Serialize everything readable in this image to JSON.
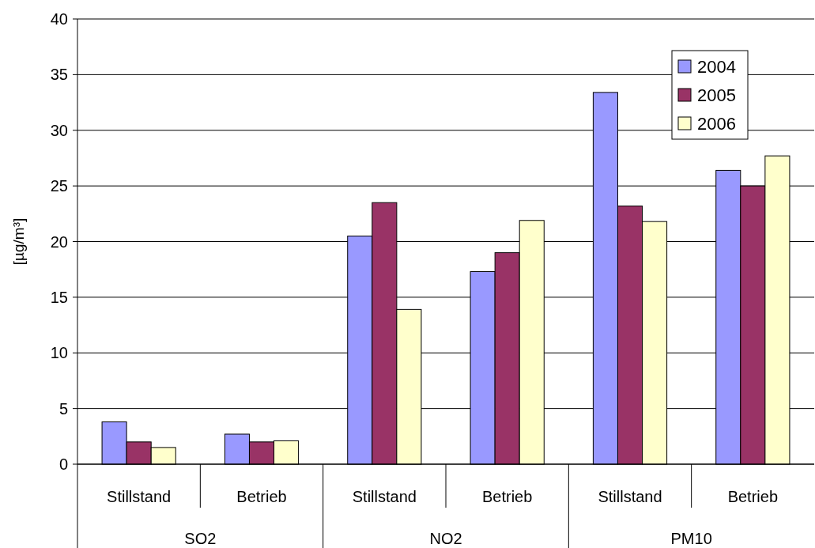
{
  "chart_data": {
    "type": "bar",
    "ylabel": "[µg/m³]",
    "categories": [
      "Stillstand",
      "Betrieb",
      "Stillstand",
      "Betrieb",
      "Stillstand",
      "Betrieb"
    ],
    "annotations": [
      "SO2",
      "NO2",
      "PM10"
    ],
    "series": [
      {
        "name": "2004",
        "color": "#9999ff",
        "values": [
          3.8,
          2.7,
          20.5,
          17.3,
          33.4,
          26.4
        ]
      },
      {
        "name": "2005",
        "color": "#993366",
        "values": [
          2.0,
          2.0,
          23.5,
          19.0,
          23.2,
          25.0
        ]
      },
      {
        "name": "2006",
        "color": "#ffffcc",
        "values": [
          1.5,
          2.1,
          13.9,
          21.9,
          21.8,
          27.7
        ]
      }
    ],
    "ylim": [
      0,
      40
    ],
    "yticks": [
      0,
      5,
      10,
      15,
      20,
      25,
      30,
      35,
      40
    ],
    "grid": "y",
    "legend": "top right"
  }
}
